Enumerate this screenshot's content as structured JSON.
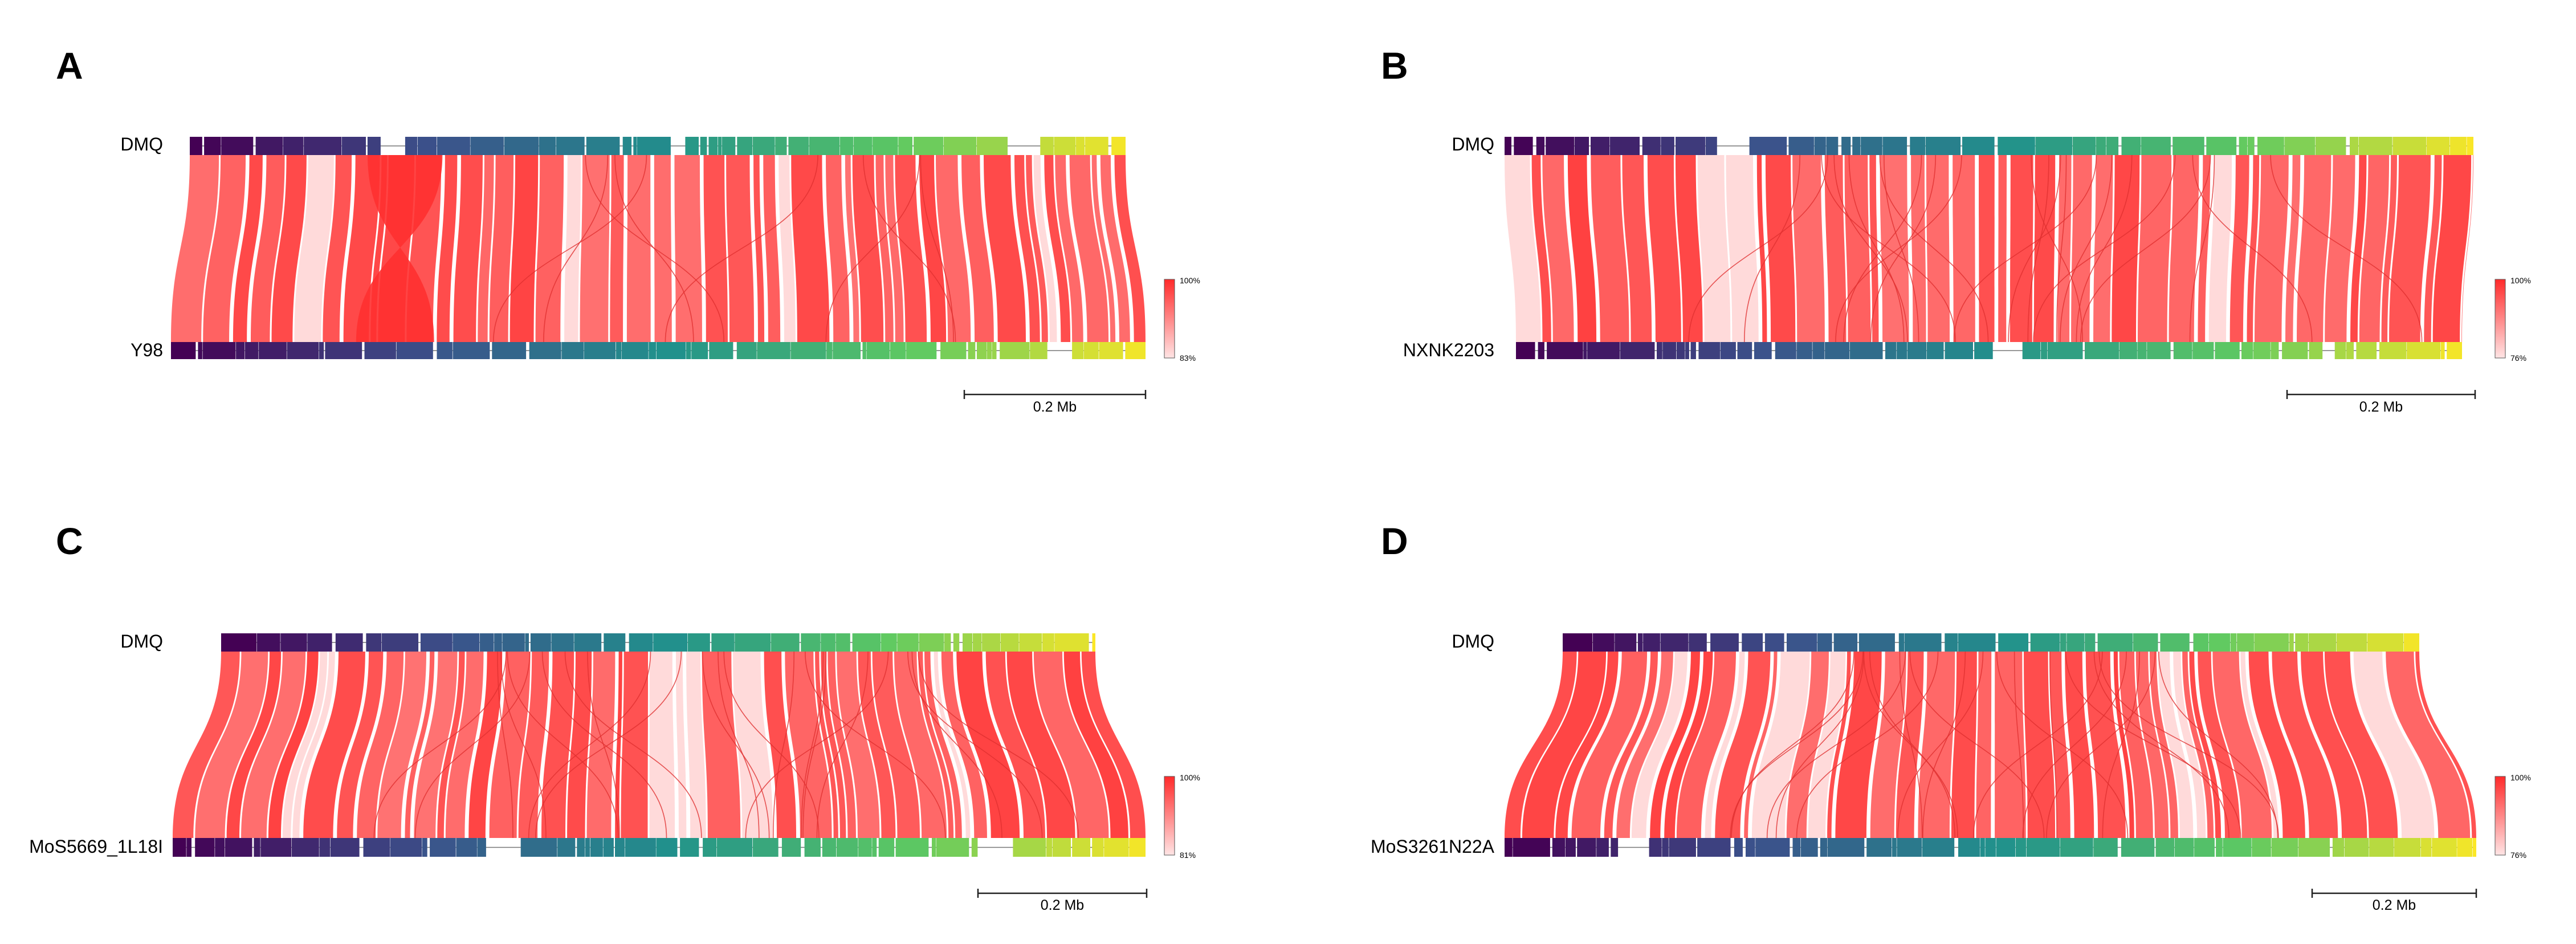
{
  "figure": {
    "panels": [
      {
        "letter": "A",
        "ref_label": "DMQ",
        "query_label": "Y98",
        "legend_max": "100%",
        "legend_min": "83%",
        "scale_label": "0.2 Mb",
        "twist": true,
        "crossing": "light"
      },
      {
        "letter": "B",
        "ref_label": "DMQ",
        "query_label": "NXNK2203",
        "legend_max": "100%",
        "legend_min": "76%",
        "scale_label": "0.2 Mb",
        "twist": false,
        "crossing": "heavy"
      },
      {
        "letter": "C",
        "ref_label": "DMQ",
        "query_label": "MoS5669_1L18I",
        "legend_max": "100%",
        "legend_min": "81%",
        "scale_label": "0.2 Mb",
        "twist": false,
        "crossing": "heavy"
      },
      {
        "letter": "D",
        "ref_label": "DMQ",
        "query_label": "MoS3261N22A",
        "legend_max": "100%",
        "legend_min": "76%",
        "scale_label": "0.2 Mb",
        "twist": false,
        "crossing": "heavy"
      }
    ],
    "colors": {
      "ribbon": "#ff3b3b",
      "ribbon_light": "#ffd6d6",
      "gradient": [
        "#440154",
        "#3b528b",
        "#21918c",
        "#5ec962",
        "#fde725"
      ]
    }
  }
}
